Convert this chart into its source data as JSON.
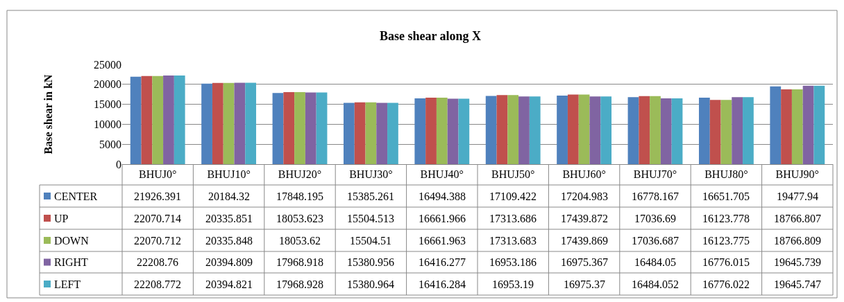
{
  "chart_data": {
    "type": "bar",
    "title": "Base shear along X",
    "ylabel": "Base shear in kN",
    "categories": [
      "BHUJ0°",
      "BHUJ10°",
      "BHUJ20°",
      "BHUJ30°",
      "BHUJ40°",
      "BHUJ50°",
      "BHUJ60°",
      "BHUJ70°",
      "BHUJ80°",
      "BHUJ90°"
    ],
    "series": [
      {
        "name": "CENTER",
        "color": "#4f81bd",
        "values": [
          21926.391,
          20184.32,
          17848.195,
          15385.261,
          16494.388,
          17109.422,
          17204.983,
          16778.167,
          16651.705,
          19477.94
        ]
      },
      {
        "name": "UP",
        "color": "#c0504d",
        "values": [
          22070.714,
          20335.851,
          18053.623,
          15504.513,
          16661.966,
          17313.686,
          17439.872,
          17036.69,
          16123.778,
          18766.807
        ]
      },
      {
        "name": "DOWN",
        "color": "#9bbb59",
        "values": [
          22070.712,
          20335.848,
          18053.62,
          15504.51,
          16661.963,
          17313.683,
          17439.869,
          17036.687,
          16123.775,
          18766.809
        ]
      },
      {
        "name": "RIGHT",
        "color": "#8064a2",
        "values": [
          22208.76,
          20394.809,
          17968.918,
          15380.956,
          16416.277,
          16953.186,
          16975.367,
          16484.05,
          16776.015,
          19645.739
        ]
      },
      {
        "name": "LEFT",
        "color": "#4bacc6",
        "values": [
          22208.772,
          20394.821,
          17968.928,
          15380.964,
          16416.284,
          16953.19,
          16975.37,
          16484.052,
          16776.022,
          19645.747
        ]
      }
    ],
    "ylim": [
      0,
      25000
    ],
    "yticks": [
      0,
      5000,
      10000,
      15000,
      20000,
      25000
    ],
    "grid": "y",
    "data_labels": true,
    "legend": "bottom left"
  }
}
